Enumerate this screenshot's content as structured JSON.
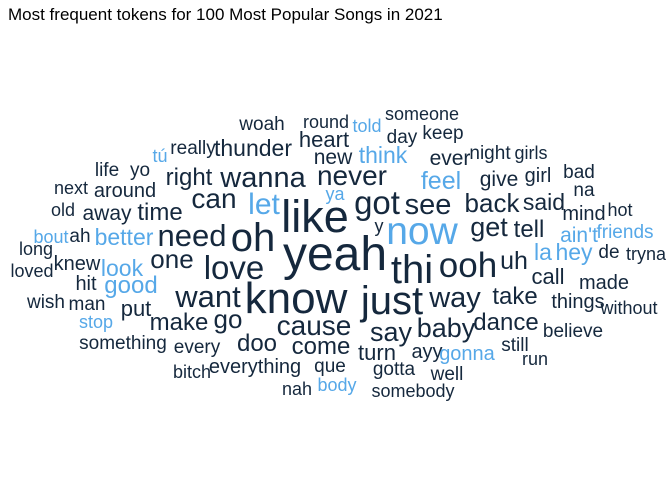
{
  "chart_data": {
    "type": "wordcloud",
    "title": "Most frequent tokens for 100 Most Popular Songs in 2021",
    "colors": {
      "dark": "#15283d",
      "light": "#56a8e8"
    },
    "words": [
      {
        "text": "yeah",
        "size": 5,
        "color": "dark"
      },
      {
        "text": "like",
        "size": 4.6,
        "color": "dark"
      },
      {
        "text": "know",
        "size": 4.5,
        "color": "dark"
      },
      {
        "text": "oh",
        "size": 4.1,
        "color": "dark"
      },
      {
        "text": "thi",
        "size": 4.0,
        "color": "dark"
      },
      {
        "text": "just",
        "size": 4.0,
        "color": "dark"
      },
      {
        "text": "now",
        "size": 3.9,
        "color": "light"
      },
      {
        "text": "ooh",
        "size": 3.4,
        "color": "dark"
      },
      {
        "text": "got",
        "size": 3.2,
        "color": "dark"
      },
      {
        "text": "love",
        "size": 3.2,
        "color": "dark"
      },
      {
        "text": "need",
        "size": 3.0,
        "color": "dark"
      },
      {
        "text": "want",
        "size": 3.0,
        "color": "dark"
      },
      {
        "text": "let",
        "size": 2.9,
        "color": "light"
      },
      {
        "text": "wanna",
        "size": 2.7,
        "color": "dark"
      },
      {
        "text": "way",
        "size": 2.7,
        "color": "dark"
      },
      {
        "text": "see",
        "size": 2.7,
        "color": "dark"
      },
      {
        "text": "cause",
        "size": 2.6,
        "color": "dark"
      },
      {
        "text": "never",
        "size": 2.6,
        "color": "dark"
      },
      {
        "text": "can",
        "size": 2.6,
        "color": "dark"
      },
      {
        "text": "get",
        "size": 2.5,
        "color": "dark"
      },
      {
        "text": "say",
        "size": 2.5,
        "color": "dark"
      },
      {
        "text": "baby",
        "size": 2.5,
        "color": "dark"
      },
      {
        "text": "one",
        "size": 2.4,
        "color": "dark"
      },
      {
        "text": "back",
        "size": 2.4,
        "color": "dark"
      },
      {
        "text": "go",
        "size": 2.4,
        "color": "dark"
      },
      {
        "text": "feel",
        "size": 2.3,
        "color": "light"
      },
      {
        "text": "uh",
        "size": 2.3,
        "color": "dark"
      },
      {
        "text": "time",
        "size": 2.2,
        "color": "dark"
      },
      {
        "text": "tell",
        "size": 2.2,
        "color": "dark"
      },
      {
        "text": "take",
        "size": 2.2,
        "color": "dark"
      },
      {
        "text": "make",
        "size": 2.1,
        "color": "dark"
      },
      {
        "text": "right",
        "size": 2.1,
        "color": "dark"
      },
      {
        "text": "dance",
        "size": 2.1,
        "color": "dark"
      },
      {
        "text": "come",
        "size": 2.1,
        "color": "dark"
      },
      {
        "text": "doo",
        "size": 2.1,
        "color": "dark"
      },
      {
        "text": "good",
        "size": 2.1,
        "color": "light"
      },
      {
        "text": "better",
        "size": 2.0,
        "color": "light"
      },
      {
        "text": "look",
        "size": 2.0,
        "color": "light"
      },
      {
        "text": "la",
        "size": 2.0,
        "color": "light"
      },
      {
        "text": "hey",
        "size": 2.0,
        "color": "light"
      },
      {
        "text": "think",
        "size": 2.0,
        "color": "light"
      },
      {
        "text": "thunder",
        "size": 2.0,
        "color": "dark"
      },
      {
        "text": "said",
        "size": 2.0,
        "color": "dark"
      },
      {
        "text": "put",
        "size": 1.9,
        "color": "dark"
      },
      {
        "text": "call",
        "size": 1.9,
        "color": "dark"
      },
      {
        "text": "turn",
        "size": 1.9,
        "color": "dark"
      },
      {
        "text": "heart",
        "size": 1.9,
        "color": "dark"
      },
      {
        "text": "give",
        "size": 1.8,
        "color": "dark"
      },
      {
        "text": "new",
        "size": 1.8,
        "color": "dark"
      },
      {
        "text": "ever",
        "size": 1.8,
        "color": "dark"
      },
      {
        "text": "away",
        "size": 1.8,
        "color": "dark"
      },
      {
        "text": "ain't",
        "size": 1.8,
        "color": "light"
      },
      {
        "text": "mind",
        "size": 1.7,
        "color": "dark"
      },
      {
        "text": "everything",
        "size": 1.7,
        "color": "dark"
      },
      {
        "text": "things",
        "size": 1.7,
        "color": "dark"
      },
      {
        "text": "girl",
        "size": 1.7,
        "color": "dark"
      },
      {
        "text": "around",
        "size": 1.7,
        "color": "dark"
      },
      {
        "text": "ayy",
        "size": 1.7,
        "color": "dark"
      },
      {
        "text": "gonna",
        "size": 1.7,
        "color": "light"
      },
      {
        "text": "knew",
        "size": 1.7,
        "color": "dark"
      },
      {
        "text": "hit",
        "size": 1.7,
        "color": "dark"
      },
      {
        "text": "made",
        "size": 1.7,
        "color": "dark"
      },
      {
        "text": "every",
        "size": 1.6,
        "color": "dark"
      },
      {
        "text": "night",
        "size": 1.6,
        "color": "dark"
      },
      {
        "text": "que",
        "size": 1.6,
        "color": "dark"
      },
      {
        "text": "something",
        "size": 1.6,
        "color": "dark"
      },
      {
        "text": "really",
        "size": 1.6,
        "color": "dark"
      },
      {
        "text": "man",
        "size": 1.6,
        "color": "dark"
      },
      {
        "text": "ah",
        "size": 1.6,
        "color": "dark"
      },
      {
        "text": "still",
        "size": 1.6,
        "color": "dark"
      },
      {
        "text": "believe",
        "size": 1.6,
        "color": "dark"
      },
      {
        "text": "yo",
        "size": 1.5,
        "color": "dark"
      },
      {
        "text": "woah",
        "size": 1.5,
        "color": "dark"
      },
      {
        "text": "keep",
        "size": 1.5,
        "color": "dark"
      },
      {
        "text": "day",
        "size": 1.5,
        "color": "dark"
      },
      {
        "text": "wish",
        "size": 1.5,
        "color": "dark"
      },
      {
        "text": "bad",
        "size": 1.5,
        "color": "dark"
      },
      {
        "text": "na",
        "size": 1.5,
        "color": "dark"
      },
      {
        "text": "de",
        "size": 1.5,
        "color": "dark"
      },
      {
        "text": "friends",
        "size": 1.5,
        "color": "light"
      },
      {
        "text": "well",
        "size": 1.5,
        "color": "dark"
      },
      {
        "text": "gotta",
        "size": 1.5,
        "color": "dark"
      },
      {
        "text": "life",
        "size": 1.5,
        "color": "dark"
      },
      {
        "text": "next",
        "size": 1.4,
        "color": "dark"
      },
      {
        "text": "old",
        "size": 1.4,
        "color": "dark"
      },
      {
        "text": "long",
        "size": 1.4,
        "color": "dark"
      },
      {
        "text": "bout",
        "size": 1.4,
        "color": "light"
      },
      {
        "text": "loved",
        "size": 1.4,
        "color": "dark"
      },
      {
        "text": "stop",
        "size": 1.4,
        "color": "light"
      },
      {
        "text": "tú",
        "size": 1.4,
        "color": "light"
      },
      {
        "text": "round",
        "size": 1.4,
        "color": "dark"
      },
      {
        "text": "told",
        "size": 1.4,
        "color": "light"
      },
      {
        "text": "someone",
        "size": 1.4,
        "color": "dark"
      },
      {
        "text": "girls",
        "size": 1.4,
        "color": "dark"
      },
      {
        "text": "hot",
        "size": 1.4,
        "color": "dark"
      },
      {
        "text": "tryna",
        "size": 1.4,
        "color": "dark"
      },
      {
        "text": "without",
        "size": 1.4,
        "color": "dark"
      },
      {
        "text": "run",
        "size": 1.4,
        "color": "dark"
      },
      {
        "text": "somebody",
        "size": 1.4,
        "color": "dark"
      },
      {
        "text": "body",
        "size": 1.4,
        "color": "light"
      },
      {
        "text": "nah",
        "size": 1.4,
        "color": "dark"
      },
      {
        "text": "bitch",
        "size": 1.4,
        "color": "dark"
      },
      {
        "text": "ya",
        "size": 1.4,
        "color": "light"
      },
      {
        "text": "y",
        "size": 1.4,
        "color": "dark"
      }
    ]
  }
}
